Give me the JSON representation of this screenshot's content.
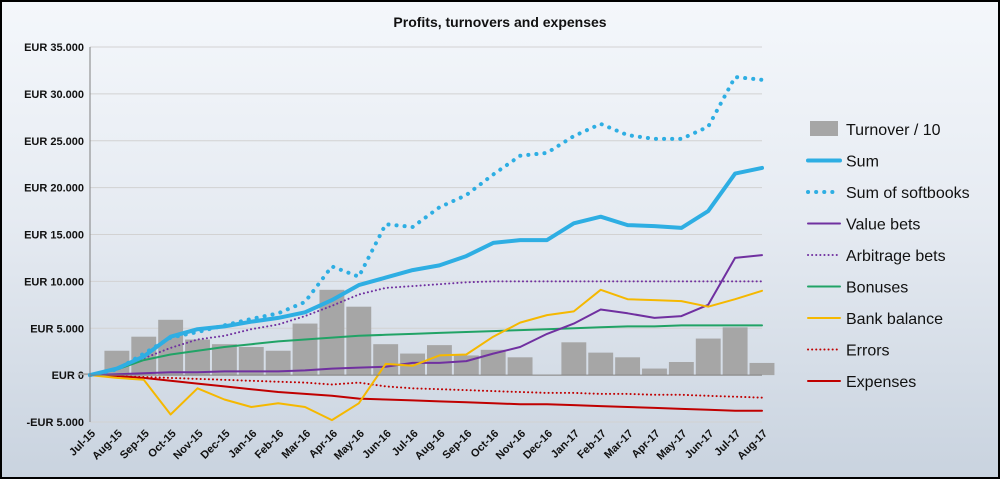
{
  "chart_data": {
    "type": "line",
    "title": "Profits, turnovers and expenses",
    "xlabel": "",
    "ylabel": "",
    "ylim": [
      -5000,
      35000
    ],
    "yticks": [
      -5000,
      0,
      5000,
      10000,
      15000,
      20000,
      25000,
      30000,
      35000
    ],
    "ytick_labels": [
      "-EUR 5.000",
      "EUR 0",
      "EUR 5.000",
      "EUR 10.000",
      "EUR 15.000",
      "EUR 20.000",
      "EUR 25.000",
      "EUR 30.000",
      "EUR 35.000"
    ],
    "categories": [
      "Jul-15",
      "Aug-15",
      "Sep-15",
      "Oct-15",
      "Nov-15",
      "Dec-15",
      "Jan-16",
      "Feb-16",
      "Mar-16",
      "Apr-16",
      "May-16",
      "Jun-16",
      "Jul-16",
      "Aug-16",
      "Sep-16",
      "Oct-16",
      "Nov-16",
      "Dec-16",
      "Jan-17",
      "Feb-17",
      "Mar-17",
      "Apr-17",
      "May-17",
      "Jun-17",
      "Jul-17",
      "Aug-17"
    ],
    "grid": true,
    "legend_position": "right",
    "colors": {
      "turnover": "#a6a6a6",
      "sum": "#2eaee3",
      "sum_softbooks": "#2eaee3",
      "value_bets": "#7030a0",
      "arbitrage_bets": "#7030a0",
      "bonuses": "#21a366",
      "bank_balance": "#f5b800",
      "errors": "#c00000",
      "expenses": "#c00000",
      "grid": "#d2d2d2"
    },
    "series": [
      {
        "name": "Turnover / 10",
        "kind": "bar",
        "values": [
          200,
          2600,
          4100,
          5900,
          3800,
          3300,
          3000,
          2600,
          5500,
          9100,
          7300,
          3300,
          2300,
          3200,
          2100,
          2700,
          1900,
          0,
          3500,
          2400,
          1900,
          700,
          1400,
          3900,
          5100,
          1300
        ]
      },
      {
        "name": "Sum",
        "kind": "line",
        "style": "solid",
        "values": [
          0,
          700,
          2000,
          4100,
          4900,
          5200,
          5700,
          6100,
          6700,
          8000,
          9600,
          10400,
          11200,
          11700,
          12700,
          14100,
          14400,
          14400,
          16200,
          16900,
          16000,
          15900,
          15700,
          17500,
          21500,
          22100
        ]
      },
      {
        "name": "Sum of softbooks",
        "kind": "line",
        "style": "dotted",
        "values": [
          0,
          600,
          2300,
          4000,
          4600,
          5300,
          6000,
          6600,
          7800,
          11600,
          10500,
          16100,
          15800,
          17900,
          19200,
          21400,
          23400,
          23700,
          25500,
          26800,
          25600,
          25200,
          25200,
          26500,
          31800,
          31500
        ]
      },
      {
        "name": "Value bets",
        "kind": "line",
        "style": "solid",
        "values": [
          0,
          100,
          200,
          300,
          300,
          400,
          400,
          400,
          500,
          700,
          800,
          900,
          1300,
          1300,
          1500,
          2300,
          3000,
          4400,
          5500,
          7000,
          6600,
          6100,
          6300,
          7500,
          12500,
          12800
        ]
      },
      {
        "name": "Arbitrage bets",
        "kind": "line",
        "style": "dotted",
        "values": [
          0,
          600,
          1800,
          2900,
          3800,
          4200,
          4900,
          5400,
          6300,
          7400,
          8600,
          9300,
          9500,
          9700,
          9900,
          10000,
          10000,
          10000,
          10000,
          10000,
          10000,
          10000,
          10000,
          10000,
          10000,
          10000
        ]
      },
      {
        "name": "Bonuses",
        "kind": "line",
        "style": "solid",
        "values": [
          0,
          600,
          1600,
          2200,
          2600,
          3000,
          3300,
          3600,
          3800,
          4000,
          4200,
          4300,
          4400,
          4500,
          4600,
          4700,
          4800,
          4900,
          5000,
          5100,
          5200,
          5200,
          5300,
          5300,
          5300,
          5300
        ]
      },
      {
        "name": "Bank balance",
        "kind": "line",
        "style": "solid",
        "values": [
          0,
          -300,
          -500,
          -4200,
          -1400,
          -2600,
          -3400,
          -3000,
          -3400,
          -4800,
          -3000,
          1200,
          1000,
          2100,
          2200,
          4100,
          5600,
          6400,
          6800,
          9100,
          8100,
          8000,
          7900,
          7300,
          8100,
          9000
        ]
      },
      {
        "name": "Errors",
        "kind": "line",
        "style": "dotted",
        "values": [
          0,
          -100,
          -200,
          -300,
          -400,
          -500,
          -600,
          -700,
          -800,
          -1000,
          -800,
          -1200,
          -1400,
          -1500,
          -1600,
          -1700,
          -1800,
          -1900,
          -1900,
          -2000,
          -2000,
          -2100,
          -2100,
          -2200,
          -2300,
          -2400
        ]
      },
      {
        "name": "Expenses",
        "kind": "line",
        "style": "solid",
        "values": [
          0,
          -100,
          -300,
          -600,
          -900,
          -1200,
          -1500,
          -1800,
          -2000,
          -2200,
          -2500,
          -2600,
          -2700,
          -2800,
          -2900,
          -3000,
          -3100,
          -3100,
          -3200,
          -3300,
          -3400,
          -3500,
          -3600,
          -3700,
          -3800,
          -3800
        ]
      }
    ]
  }
}
